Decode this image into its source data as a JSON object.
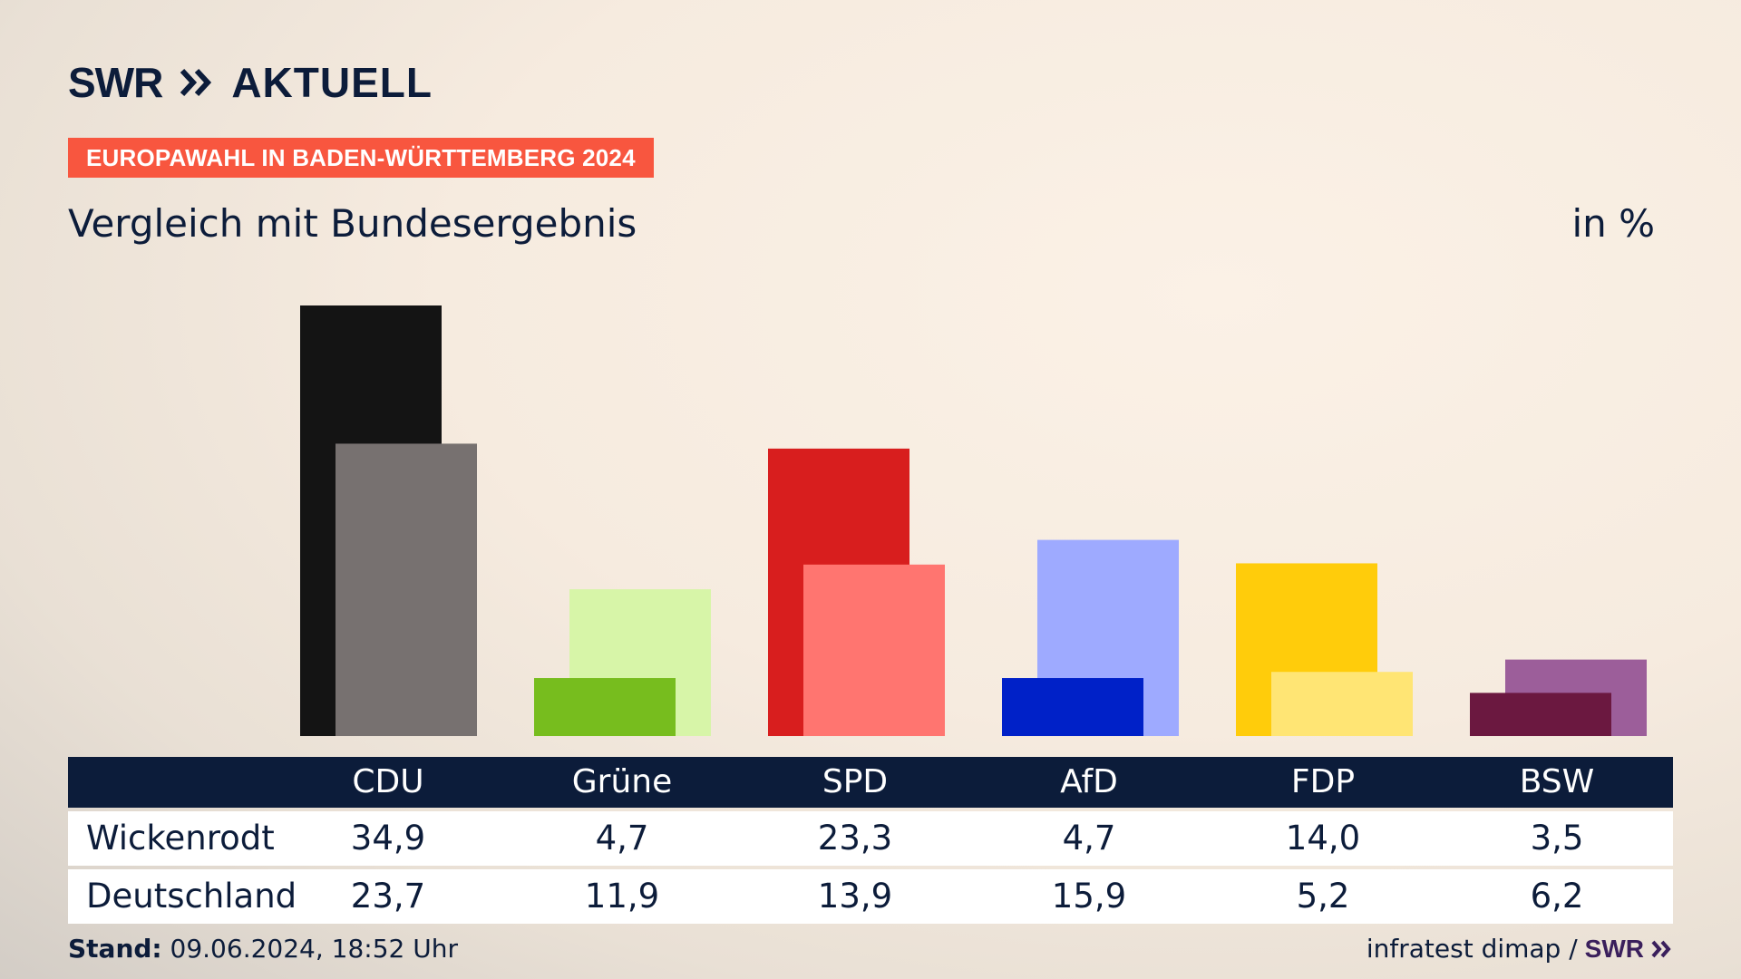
{
  "header": {
    "brand": "SWR",
    "brand_product": "AKTUELL",
    "badge": "EUROPAWAHL IN BADEN-WÜRTTEMBERG 2024",
    "title": "Vergleich mit Bundesergebnis",
    "unit": "in %"
  },
  "chart_data": {
    "type": "bar",
    "categories": [
      "CDU",
      "Grüne",
      "SPD",
      "AfD",
      "FDP",
      "BSW"
    ],
    "series": [
      {
        "name": "Wickenrodt",
        "values": [
          34.9,
          4.7,
          23.3,
          4.7,
          14.0,
          3.5
        ],
        "colors": [
          "#141414",
          "#77bd1e",
          "#d81e1e",
          "#0021c8",
          "#ffcc0b",
          "#6b1840"
        ]
      },
      {
        "name": "Deutschland",
        "values": [
          23.7,
          11.9,
          13.9,
          15.9,
          5.2,
          6.2
        ],
        "colors": [
          "#777170",
          "#d7f5a8",
          "#ff7570",
          "#9eaaff",
          "#ffe574",
          "#9c5e9a"
        ]
      }
    ],
    "ylim": [
      0,
      36
    ]
  },
  "table": {
    "headers": [
      "CDU",
      "Grüne",
      "SPD",
      "AfD",
      "FDP",
      "BSW"
    ],
    "rows": [
      {
        "label": "Wickenrodt",
        "values": [
          "34,9",
          "4,7",
          "23,3",
          "4,7",
          "14,0",
          "3,5"
        ]
      },
      {
        "label": "Deutschland",
        "values": [
          "23,7",
          "11,9",
          "13,9",
          "15,9",
          "5,2",
          "6,2"
        ]
      }
    ]
  },
  "footer": {
    "stand_label": "Stand:",
    "stand_value": "09.06.2024, 18:52 Uhr",
    "source": "infratest dimap /",
    "source_brand": "SWR"
  }
}
